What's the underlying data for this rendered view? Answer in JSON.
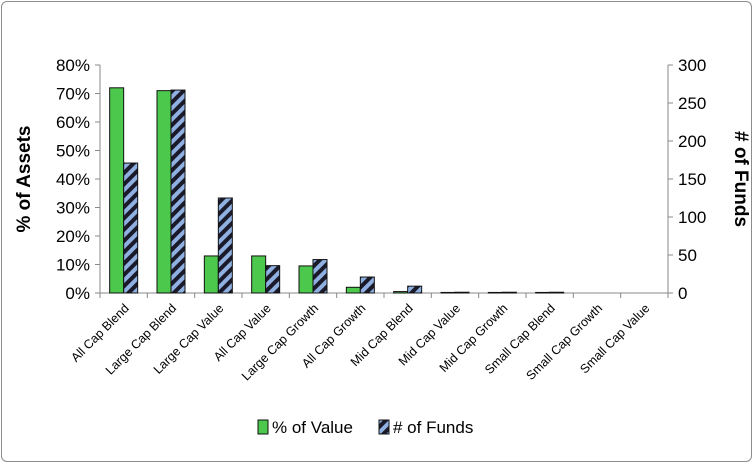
{
  "chart_data": {
    "type": "bar",
    "categories": [
      "All Cap Blend",
      "Large Cap Blend",
      "Large Cap Value",
      "All Cap Value",
      "Large Cap Growth",
      "All Cap Growth",
      "Mid Cap Blend",
      "Mid Cap Value",
      "Mid Cap Growth",
      "Small Cap Blend",
      "Small Cap Growth",
      "Small Cap Value"
    ],
    "series": [
      {
        "name": "% of Value",
        "axis": "left",
        "color": "#4cc84c",
        "values": [
          0.72,
          0.71,
          0.13,
          0.13,
          0.095,
          0.02,
          0.005,
          0.002,
          0.002,
          0.002,
          0,
          0
        ]
      },
      {
        "name": "# of Funds",
        "axis": "right",
        "color": "#8fb0e0",
        "pattern": "hatch-dark",
        "values": [
          171,
          267,
          125,
          36,
          44,
          21,
          9,
          1,
          1,
          1,
          0,
          0
        ]
      }
    ],
    "y_left": {
      "label": "% of Assets",
      "min": 0,
      "max": 0.8,
      "ticks": [
        "0%",
        "10%",
        "20%",
        "30%",
        "40%",
        "50%",
        "60%",
        "70%",
        "80%"
      ]
    },
    "y_right": {
      "label": "# of Funds",
      "min": 0,
      "max": 300,
      "ticks": [
        "0",
        "50",
        "100",
        "150",
        "200",
        "250",
        "300"
      ]
    },
    "legend": {
      "position": "bottom",
      "items": [
        "% of Value",
        "# of Funds"
      ]
    },
    "grid": false
  }
}
